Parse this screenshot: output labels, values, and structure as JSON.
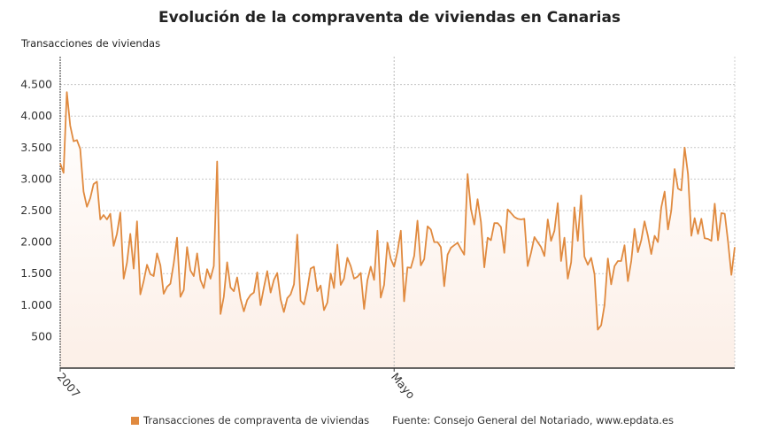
{
  "title": "Evolución de la compraventa de viviendas en Canarias",
  "legend": {
    "label": "Transacciones de compraventa de viviendas",
    "source": "Fuente: Consejo General del Notariado, www.epdata.es"
  },
  "colors": {
    "line": "#e08a3f",
    "fill": "#fcefe7"
  },
  "chart_data": {
    "type": "area",
    "title": "Evolución de la compraventa de viviendas en Canarias",
    "ylabel": "Transacciones de viviendas",
    "xlabel": "",
    "ylim": [
      0,
      4900
    ],
    "yticks": [
      500,
      1000,
      1500,
      2000,
      2500,
      3000,
      3500,
      4000,
      4500
    ],
    "ytick_labels": [
      "500",
      "1.000",
      "1.500",
      "2.000",
      "2.500",
      "3.000",
      "3.500",
      "4.000",
      "4.500"
    ],
    "x_ticks": [
      {
        "label": "2007",
        "index": 0
      },
      {
        "label": "Mayo",
        "index": 100
      }
    ],
    "grid": true,
    "legend_position": "bottom",
    "series": [
      {
        "name": "Transacciones de compraventa de viviendas",
        "values": [
          3250,
          3100,
          4380,
          3850,
          3600,
          3620,
          3480,
          2800,
          2560,
          2700,
          2920,
          2960,
          2360,
          2430,
          2360,
          2450,
          1940,
          2130,
          2470,
          1420,
          1670,
          2130,
          1580,
          2330,
          1170,
          1380,
          1640,
          1490,
          1460,
          1820,
          1630,
          1180,
          1290,
          1340,
          1670,
          2070,
          1130,
          1240,
          1920,
          1550,
          1460,
          1820,
          1400,
          1270,
          1570,
          1420,
          1620,
          3280,
          860,
          1130,
          1680,
          1280,
          1220,
          1440,
          1100,
          900,
          1080,
          1160,
          1200,
          1520,
          1000,
          1280,
          1540,
          1200,
          1400,
          1510,
          1090,
          890,
          1110,
          1170,
          1330,
          2120,
          1070,
          1010,
          1250,
          1580,
          1610,
          1220,
          1310,
          920,
          1040,
          1500,
          1270,
          1960,
          1320,
          1420,
          1750,
          1620,
          1420,
          1450,
          1510,
          940,
          1390,
          1610,
          1400,
          2180,
          1120,
          1320,
          1990,
          1730,
          1610,
          1850,
          2180,
          1060,
          1600,
          1590,
          1780,
          2340,
          1630,
          1730,
          2250,
          2200,
          2000,
          2000,
          1920,
          1300,
          1800,
          1910,
          1950,
          1990,
          1890,
          1800,
          3080,
          2520,
          2280,
          2680,
          2320,
          1600,
          2070,
          2030,
          2300,
          2300,
          2240,
          1830,
          2520,
          2460,
          2400,
          2370,
          2360,
          2370,
          1620,
          1830,
          2080,
          2000,
          1920,
          1780,
          2360,
          2020,
          2180,
          2620,
          1700,
          2070,
          1420,
          1680,
          2550,
          2020,
          2740,
          1770,
          1640,
          1750,
          1490,
          610,
          680,
          1000,
          1740,
          1330,
          1620,
          1700,
          1700,
          1950,
          1380,
          1700,
          2210,
          1840,
          2030,
          2330,
          2100,
          1810,
          2100,
          2000,
          2550,
          2800,
          2200,
          2500,
          3160,
          2850,
          2820,
          3500,
          3080,
          2100,
          2380,
          2130,
          2370,
          2060,
          2050,
          2020,
          2610,
          2030,
          2460,
          2450,
          2000,
          1480,
          1920
        ]
      }
    ]
  }
}
